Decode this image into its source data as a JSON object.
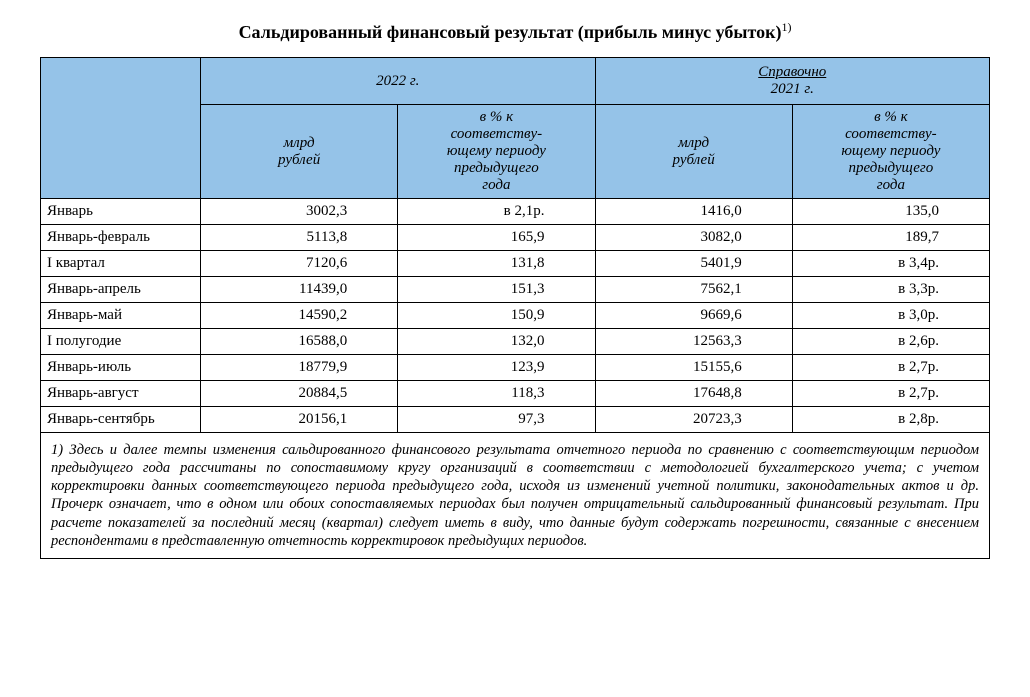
{
  "title": "Сальдированный финансовый результат (прибыль минус убыток)",
  "title_sup": "1)",
  "header": {
    "year_current": "2022 г.",
    "ref_label": "Справочно",
    "year_prev": "2021 г.",
    "col_value": "млрд\nрублей",
    "col_pct": "в % к\nсоответству-\nющему периоду\nпредыдущего\nгода"
  },
  "rows": [
    {
      "period": "Январь",
      "v1": "3002,3",
      "p1": "в 2,1р.",
      "v2": "1416,0",
      "p2": "135,0"
    },
    {
      "period": "Январь-февраль",
      "v1": "5113,8",
      "p1": "165,9",
      "v2": "3082,0",
      "p2": "189,7"
    },
    {
      "period": "I квартал",
      "v1": "7120,6",
      "p1": "131,8",
      "v2": "5401,9",
      "p2": "в 3,4р."
    },
    {
      "period": "Январь-апрель",
      "v1": "11439,0",
      "p1": "151,3",
      "v2": "7562,1",
      "p2": "в 3,3р."
    },
    {
      "period": "Январь-май",
      "v1": "14590,2",
      "p1": "150,9",
      "v2": "9669,6",
      "p2": "в 3,0р."
    },
    {
      "period": "I полугодие",
      "v1": "16588,0",
      "p1": "132,0",
      "v2": "12563,3",
      "p2": "в 2,6р."
    },
    {
      "period": "Январь-июль",
      "v1": "18779,9",
      "p1": "123,9",
      "v2": "15155,6",
      "p2": "в 2,7р."
    },
    {
      "period": "Январь-август",
      "v1": "20884,5",
      "p1": "118,3",
      "v2": "17648,8",
      "p2": "в 2,7р."
    },
    {
      "period": "Январь-сентябрь",
      "v1": "20156,1",
      "p1": "97,3",
      "v2": "20723,3",
      "p2": "в 2,8р."
    }
  ],
  "footnote": "1) Здесь и далее темпы изменения сальдированного финансового результата отчетного периода по сравнению с соответствующим периодом предыдущего года рассчитаны по сопоставимому кругу организаций в соответствии с методологией бухгалтерского учета; с учетом корректировки данных соответствующего периода предыдущего года, исходя из изменений учетной политики, законодательных актов и др. Прочерк означает, что в одном или обоих сопоставляемых периодах был получен отрицательный сальдированный финансовый результат. При расчете показателей за последний месяц (квартал) следует иметь в виду, что данные будут содержать погрешности, связанные с внесением респондентами в представленную отчетность корректировок предыдущих периодов.",
  "style": {
    "header_bg": "#95c3e8",
    "border_color": "#000000",
    "font_family": "Times New Roman"
  }
}
